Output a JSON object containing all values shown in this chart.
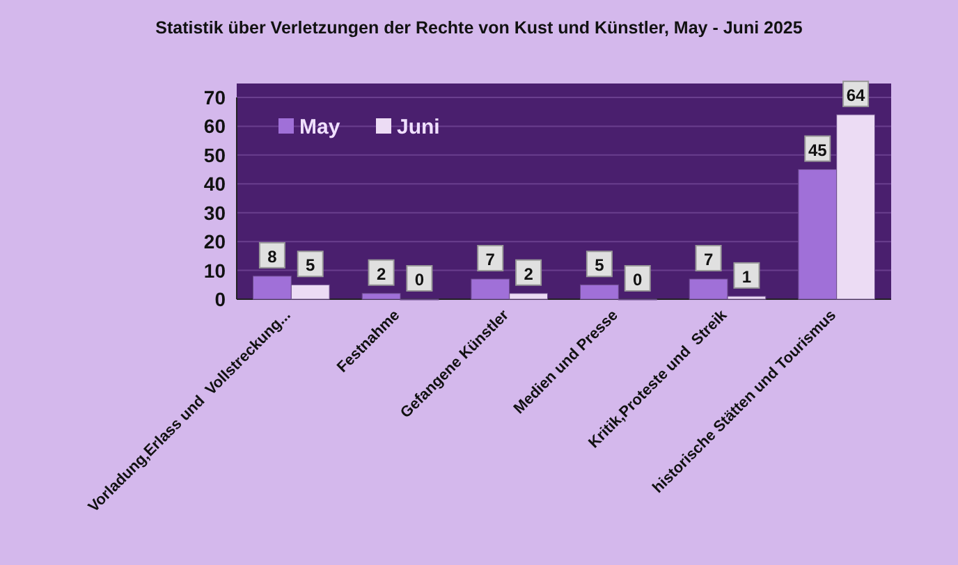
{
  "chart_data": {
    "type": "bar",
    "title": "Statistik über Verletzungen der Rechte von Kust und Künstler, May - Juni 2025",
    "categories": [
      "Vorladung,Erlass und  Vollstreckung...",
      "Festnahme",
      "Gefangene Künstler",
      "Medien und Presse",
      "Kritik,Proteste und  Streik",
      "historische Stätten und Tourismus"
    ],
    "series": [
      {
        "name": "May",
        "color": "#a070d8",
        "values": [
          8,
          2,
          7,
          5,
          7,
          45
        ]
      },
      {
        "name": "Juni",
        "color": "#ecdcf4",
        "values": [
          5,
          0,
          2,
          0,
          1,
          64
        ]
      }
    ],
    "ylim": [
      0,
      70
    ],
    "yticks": [
      0,
      10,
      20,
      30,
      40,
      50,
      60,
      70
    ],
    "grid": "y",
    "legend": "top left",
    "data_labels": true
  }
}
